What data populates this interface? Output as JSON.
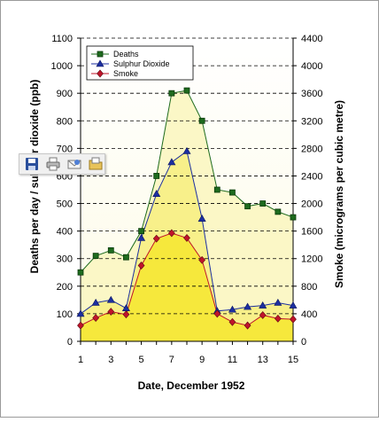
{
  "chart_data": {
    "type": "line",
    "title": "",
    "xlabel": "Date, December 1952",
    "ylabel_left": "Deaths per day / sulphur dioxide (ppb)",
    "ylabel_right": "Smoke (micrograms per cubic metre)",
    "x": [
      1,
      2,
      3,
      4,
      5,
      6,
      7,
      8,
      9,
      10,
      11,
      12,
      13,
      14,
      15
    ],
    "x_ticks": [
      "1",
      "3",
      "5",
      "7",
      "9",
      "11",
      "13",
      "15"
    ],
    "ylim_left": [
      0,
      1100
    ],
    "ylim_right": [
      0,
      4400
    ],
    "y_ticks_left": [
      "0",
      "100",
      "200",
      "300",
      "400",
      "500",
      "600",
      "700",
      "800",
      "900",
      "1000",
      "1100"
    ],
    "y_ticks_right": [
      "0",
      "400",
      "800",
      "1200",
      "1600",
      "2000",
      "2400",
      "2800",
      "3200",
      "3600",
      "4000",
      "4400"
    ],
    "grid": "horizontal dashed",
    "legend_position": "top-left",
    "series": [
      {
        "name": "Deaths",
        "axis": "left",
        "marker": "square",
        "color": "#1e6b1e",
        "values": [
          250,
          310,
          330,
          305,
          400,
          600,
          900,
          910,
          800,
          550,
          540,
          490,
          500,
          470,
          450
        ]
      },
      {
        "name": "Sulphur Dioxide",
        "axis": "left",
        "marker": "triangle",
        "color": "#1c2fa0",
        "values": [
          100,
          140,
          150,
          120,
          375,
          535,
          650,
          690,
          445,
          110,
          115,
          125,
          130,
          140,
          130
        ]
      },
      {
        "name": "Smoke",
        "axis": "right",
        "marker": "diamond",
        "color": "#c0142a",
        "values": [
          230,
          340,
          430,
          390,
          1100,
          1490,
          1570,
          1500,
          1180,
          400,
          280,
          230,
          380,
          330,
          320
        ]
      }
    ],
    "fill_colors": {
      "deaths": "#fbf7c6",
      "sulphur_dioxide": "#f8f08a",
      "smoke": "#f6e83c"
    }
  },
  "toolbar": {
    "buttons": [
      {
        "icon": "save-icon"
      },
      {
        "icon": "print-icon"
      },
      {
        "icon": "email-icon"
      },
      {
        "icon": "folder-icon"
      }
    ]
  }
}
